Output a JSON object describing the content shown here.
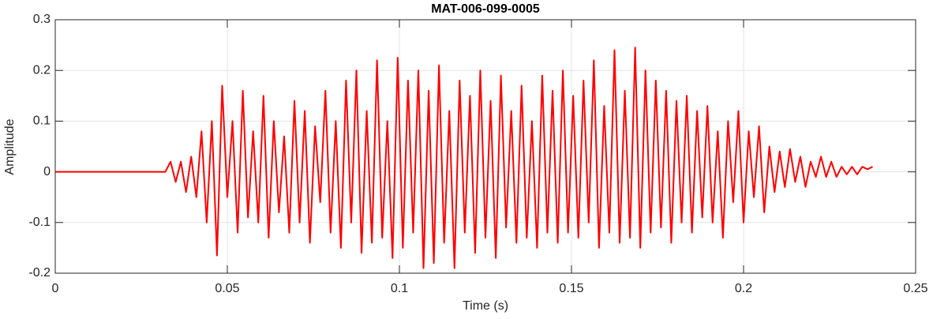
{
  "chart_data": {
    "type": "line",
    "title": "MAT-006-099-0005",
    "xlabel": "Time (s)",
    "ylabel": "Amplitude",
    "xlim": [
      0,
      0.25
    ],
    "ylim": [
      -0.2,
      0.3
    ],
    "xticks": [
      0,
      0.05,
      0.1,
      0.15,
      0.2,
      0.25
    ],
    "yticks": [
      -0.2,
      -0.1,
      0,
      0.1,
      0.2,
      0.3
    ],
    "grid": true,
    "series": [
      {
        "color": "#ff0000",
        "x": [
          0,
          0.032,
          0.0335,
          0.035,
          0.0365,
          0.038,
          0.0395,
          0.041,
          0.0425,
          0.044,
          0.0455,
          0.047,
          0.0485,
          0.05,
          0.0515,
          0.053,
          0.0545,
          0.056,
          0.0575,
          0.059,
          0.0605,
          0.062,
          0.0635,
          0.065,
          0.0665,
          0.068,
          0.0695,
          0.071,
          0.0725,
          0.074,
          0.0755,
          0.077,
          0.0785,
          0.08,
          0.0815,
          0.083,
          0.0845,
          0.086,
          0.0875,
          0.089,
          0.0905,
          0.092,
          0.0935,
          0.095,
          0.0965,
          0.098,
          0.0995,
          0.101,
          0.1025,
          0.104,
          0.1055,
          0.107,
          0.1085,
          0.11,
          0.1115,
          0.113,
          0.1145,
          0.116,
          0.1175,
          0.119,
          0.1205,
          0.122,
          0.1235,
          0.125,
          0.1265,
          0.128,
          0.1295,
          0.131,
          0.1325,
          0.134,
          0.1355,
          0.137,
          0.1385,
          0.14,
          0.1415,
          0.143,
          0.1445,
          0.146,
          0.1475,
          0.149,
          0.1505,
          0.152,
          0.1535,
          0.155,
          0.1565,
          0.158,
          0.1595,
          0.161,
          0.1625,
          0.164,
          0.1655,
          0.167,
          0.1685,
          0.17,
          0.1715,
          0.173,
          0.1745,
          0.176,
          0.1775,
          0.179,
          0.1805,
          0.182,
          0.1835,
          0.185,
          0.1865,
          0.188,
          0.1895,
          0.191,
          0.1925,
          0.194,
          0.1955,
          0.197,
          0.1985,
          0.2,
          0.2015,
          0.203,
          0.2045,
          0.206,
          0.2075,
          0.209,
          0.2105,
          0.212,
          0.2135,
          0.215,
          0.2165,
          0.218,
          0.2195,
          0.221,
          0.2225,
          0.224,
          0.2255,
          0.227,
          0.2285,
          0.23,
          0.2315,
          0.233,
          0.2345,
          0.236,
          0.2375
        ],
        "values": [
          0,
          0,
          0.02,
          -0.02,
          0.02,
          -0.04,
          0.03,
          -0.05,
          0.08,
          -0.1,
          0.1,
          -0.165,
          0.17,
          -0.05,
          0.1,
          -0.12,
          0.16,
          -0.09,
          0.08,
          -0.1,
          0.15,
          -0.13,
          0.1,
          -0.08,
          0.07,
          -0.12,
          0.14,
          -0.1,
          0.12,
          -0.14,
          0.09,
          -0.06,
          0.16,
          -0.12,
          0.1,
          -0.15,
          0.18,
          -0.1,
          0.2,
          -0.16,
          0.12,
          -0.14,
          0.22,
          -0.13,
          0.1,
          -0.17,
          0.225,
          -0.15,
          0.18,
          -0.12,
          0.2,
          -0.19,
          0.16,
          -0.18,
          0.21,
          -0.14,
          0.12,
          -0.19,
          0.18,
          -0.12,
          0.15,
          -0.16,
          0.2,
          -0.13,
          0.14,
          -0.17,
          0.19,
          -0.11,
          0.12,
          -0.14,
          0.17,
          -0.13,
          0.1,
          -0.15,
          0.19,
          -0.12,
          0.16,
          -0.14,
          0.2,
          -0.12,
          0.15,
          -0.13,
          0.18,
          -0.1,
          0.22,
          -0.15,
          0.13,
          -0.12,
          0.24,
          -0.14,
          0.16,
          -0.13,
          0.245,
          -0.15,
          0.2,
          -0.12,
          0.18,
          -0.11,
          0.16,
          -0.14,
          0.14,
          -0.1,
          0.15,
          -0.12,
          0.12,
          -0.09,
          0.13,
          -0.1,
          0.08,
          -0.13,
          0.1,
          -0.06,
          0.12,
          -0.1,
          0.08,
          -0.05,
          0.09,
          -0.08,
          0.05,
          -0.04,
          0.04,
          -0.03,
          0.045,
          -0.02,
          0.03,
          -0.03,
          0.02,
          -0.01,
          0.03,
          -0.01,
          0.02,
          -0.01,
          0.01,
          -0.005,
          0.01,
          -0.005,
          0.01,
          0.005,
          0.01
        ]
      }
    ]
  }
}
